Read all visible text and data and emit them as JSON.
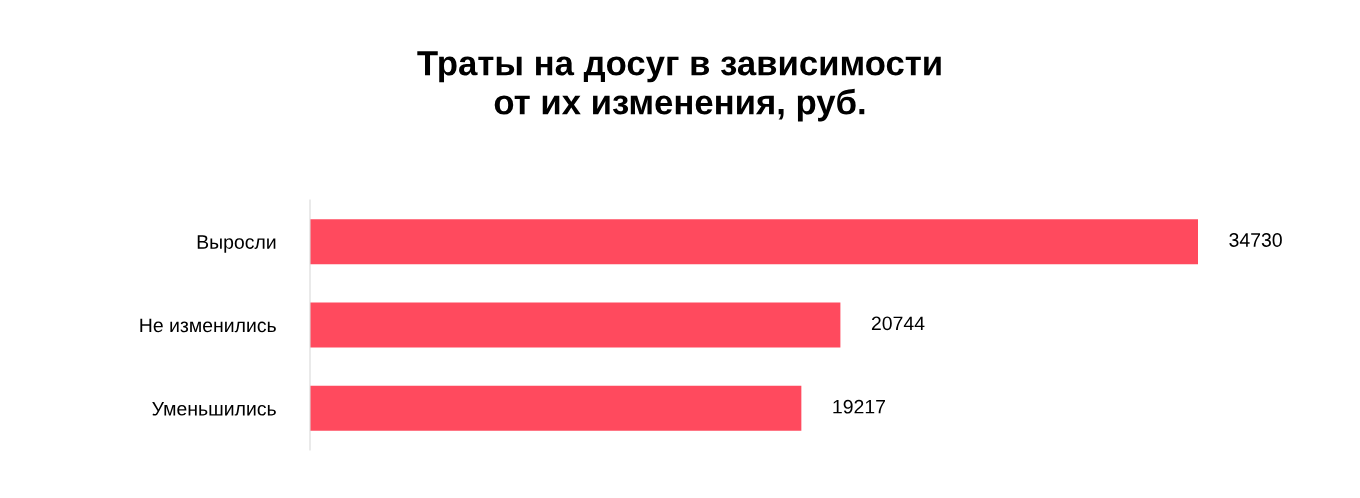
{
  "chart_data": {
    "type": "bar",
    "orientation": "horizontal",
    "title": "Траты на досуг в зависимости\nот их изменения, руб.",
    "categories": [
      "Выросли",
      "Не изменились",
      "Уменьшились"
    ],
    "values": [
      34730,
      20744,
      19217
    ],
    "color": "#ff4a5e",
    "data_labels": true,
    "grid": false,
    "legend": false,
    "tick_labels": "y"
  }
}
